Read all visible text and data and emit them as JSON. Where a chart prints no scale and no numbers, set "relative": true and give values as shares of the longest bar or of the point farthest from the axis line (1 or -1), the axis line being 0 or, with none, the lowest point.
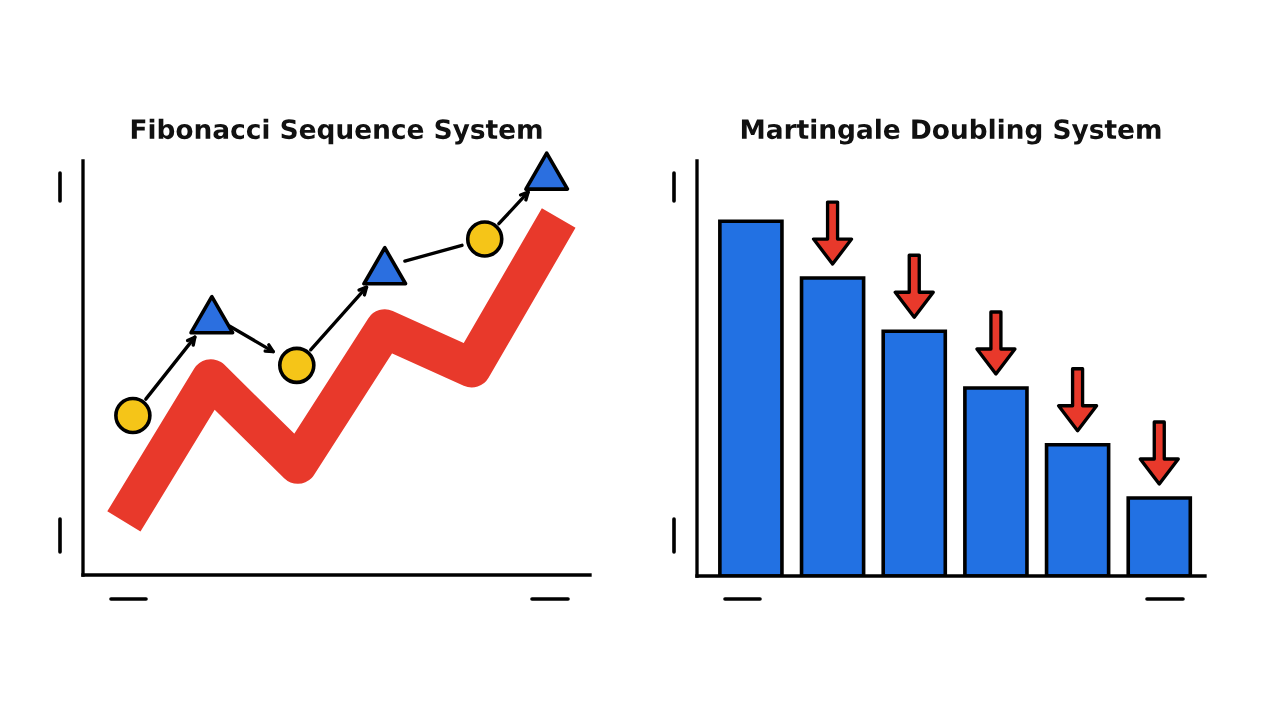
{
  "chart_data": [
    {
      "type": "line",
      "title": "Fibonacci Sequence System",
      "relative": true,
      "categories": [
        null,
        null,
        null,
        null,
        null,
        null
      ],
      "values": [
        0.15,
        0.55,
        0.31,
        0.69,
        0.58,
        1
      ],
      "color": "#e8392b"
    },
    {
      "type": "bar",
      "title": "Martingale Doubling System",
      "relative": true,
      "categories": [
        null,
        null,
        null,
        null,
        null,
        null
      ],
      "values": [
        1,
        0.84,
        0.69,
        0.53,
        0.37,
        0.22
      ],
      "color": "#2271e3"
    }
  ]
}
